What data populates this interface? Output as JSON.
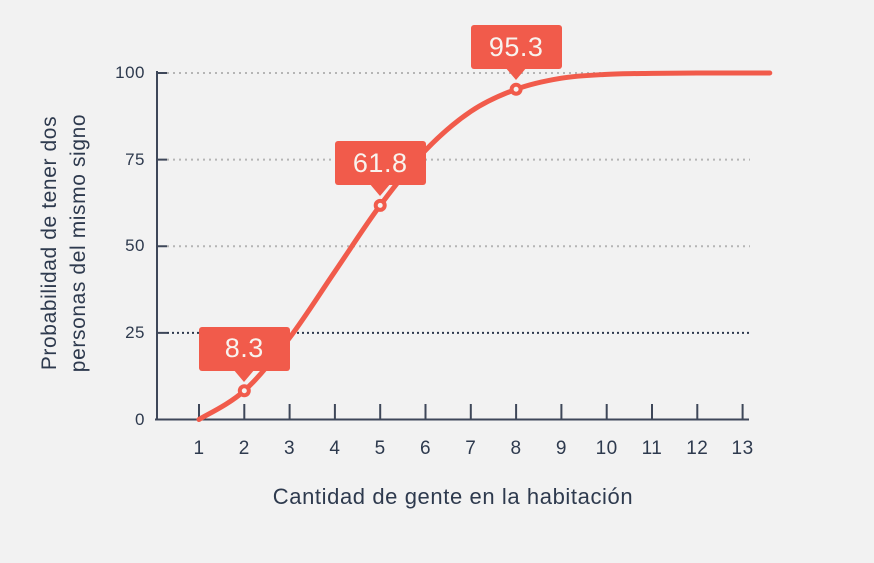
{
  "chart_data": {
    "type": "line",
    "xlabel": "Cantidad de gente en la habitación",
    "ylabel_lines": [
      "Probabilidad de tener dos",
      "personas del mismo signo"
    ],
    "x": [
      1,
      2,
      3,
      4,
      5,
      6,
      7,
      8,
      9,
      10,
      11,
      12,
      13
    ],
    "values": [
      0,
      8.3,
      23.6,
      42.7,
      61.8,
      77.7,
      88.9,
      95.3,
      98.5,
      99.6,
      99.9,
      100,
      100
    ],
    "x_ticks": [
      "1",
      "2",
      "3",
      "4",
      "5",
      "6",
      "7",
      "8",
      "9",
      "10",
      "11",
      "12",
      "13"
    ],
    "y_ticks": [
      "100",
      "75",
      "50",
      "25",
      "0"
    ],
    "y_tick_values": [
      100,
      75,
      50,
      25,
      0
    ],
    "xlim": [
      1,
      13
    ],
    "ylim": [
      0,
      100
    ],
    "grid": "horizontal dotted",
    "highlight_gridline_value": 25,
    "legend": "none",
    "callouts": [
      {
        "x": 2,
        "value": 8.3,
        "label": "8.3"
      },
      {
        "x": 5,
        "value": 61.8,
        "label": "61.8"
      },
      {
        "x": 8,
        "value": 95.3,
        "label": "95.3"
      }
    ],
    "colors": {
      "line": "#f15b4b",
      "marker_fill": "#f5f3f1",
      "callout_bg": "#f15b4b",
      "callout_text": "#f8f3ee",
      "axis": "#3e4759",
      "text": "#2e3a4e",
      "grid_dotted": "#b5b5b5",
      "grid_highlight": "#2e3a4e",
      "background": "#f2f2f2"
    }
  }
}
